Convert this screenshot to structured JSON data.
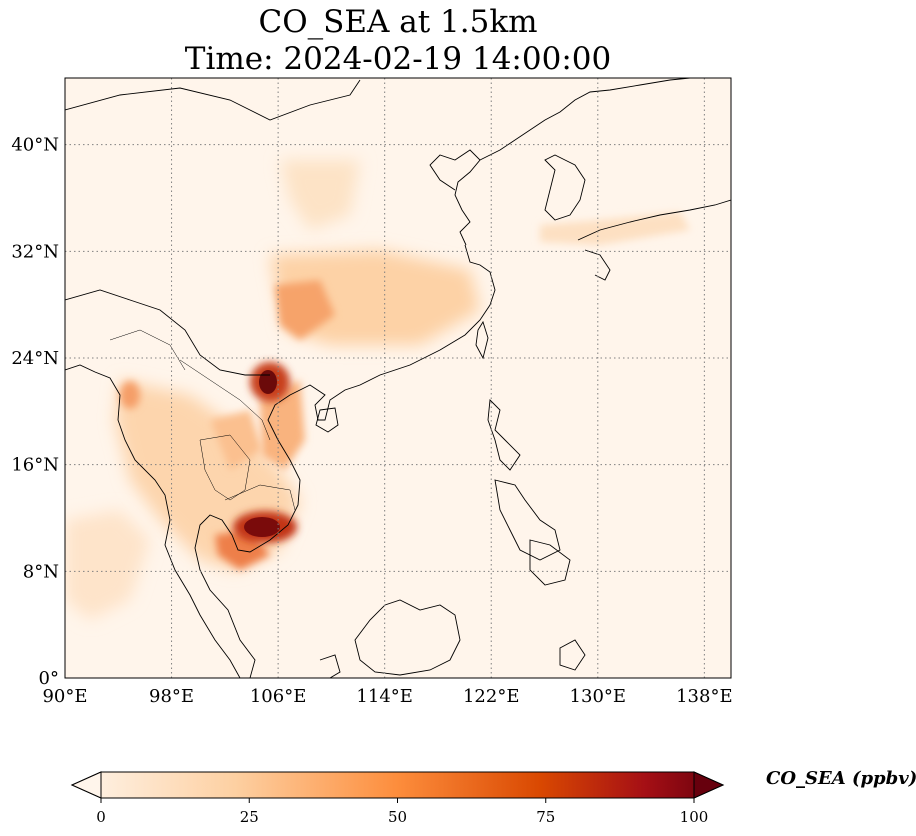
{
  "title_line1": "CO_SEA at 1.5km",
  "title_line2": "Time: 2024-02-19 14:00:00",
  "map": {
    "lon_range": [
      90,
      140
    ],
    "lat_range": [
      0,
      45
    ],
    "lon_ticks": [
      {
        "value": 90,
        "label": "90°E"
      },
      {
        "value": 98,
        "label": "98°E"
      },
      {
        "value": 106,
        "label": "106°E"
      },
      {
        "value": 114,
        "label": "114°E"
      },
      {
        "value": 122,
        "label": "122°E"
      },
      {
        "value": 130,
        "label": "130°E"
      },
      {
        "value": 138,
        "label": "138°E"
      }
    ],
    "lat_ticks": [
      {
        "value": 0,
        "label": "0°"
      },
      {
        "value": 8,
        "label": "8°N"
      },
      {
        "value": 16,
        "label": "16°N"
      },
      {
        "value": 24,
        "label": "24°N"
      },
      {
        "value": 32,
        "label": "32°N"
      },
      {
        "value": 40,
        "label": "40°N"
      }
    ],
    "gridlines": "dotted",
    "hotspots": [
      {
        "lon": 105.8,
        "lat": 21.5,
        "value": 100
      },
      {
        "lon": 106.2,
        "lat": 11.5,
        "value": 100
      },
      {
        "lon": 104.5,
        "lat": 11.0,
        "value": 80
      },
      {
        "lon": 106.5,
        "lat": 27.5,
        "value": 45
      },
      {
        "lon": 106.0,
        "lat": 17.0,
        "value": 40
      },
      {
        "lon": 95.0,
        "lat": 21.0,
        "value": 30
      }
    ]
  },
  "colorbar": {
    "ticks": [
      "0",
      "25",
      "50",
      "75",
      "100"
    ],
    "label": "CO_SEA (ppbv)",
    "colors": [
      "#fff5eb",
      "#fdd0a2",
      "#fd8d3c",
      "#d94801",
      "#a50f15",
      "#67000d"
    ]
  }
}
